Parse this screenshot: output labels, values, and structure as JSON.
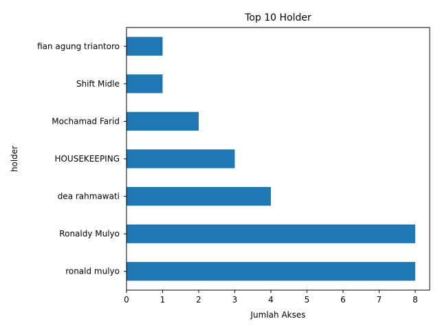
{
  "chart_data": {
    "type": "bar",
    "orientation": "horizontal",
    "title": "Top 10 Holder",
    "xlabel": "Jumlah Akses",
    "ylabel": "holder",
    "categories": [
      "ronald mulyo",
      "Ronaldy Mulyo",
      "dea rahmawati",
      "HOUSEKEEPING",
      "Mochamad Farid",
      "Shift Midle",
      "fian agung triantoro"
    ],
    "values": [
      8,
      8,
      4,
      3,
      2,
      1,
      1
    ],
    "xlim": [
      0,
      8.4
    ],
    "xticks": [
      "0",
      "1",
      "2",
      "3",
      "4",
      "5",
      "6",
      "7",
      "8"
    ],
    "grid": false,
    "legend": "none",
    "bar_color": "#1f77b4"
  }
}
